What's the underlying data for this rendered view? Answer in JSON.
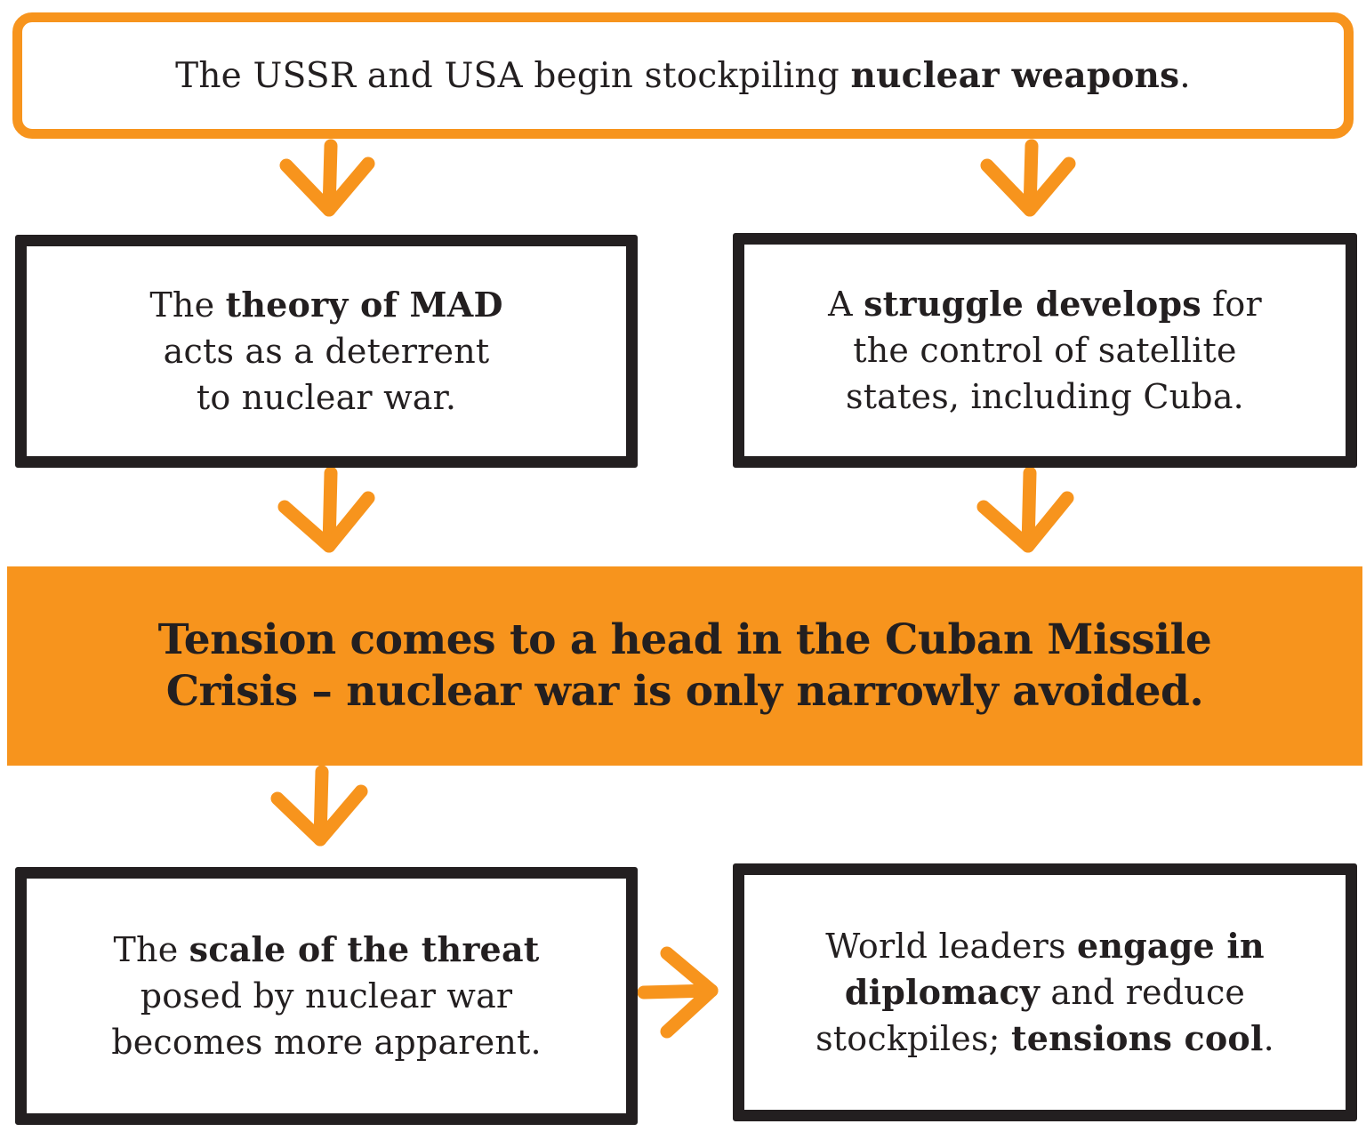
{
  "colors": {
    "accent": "#f7941d",
    "ink": "#231f20",
    "background": "#ffffff"
  },
  "nodes": {
    "stockpiling": {
      "a": "The USSR and USA begin stockpiling ",
      "b": "nuclear weapons",
      "c": "."
    },
    "mad": {
      "a": "The ",
      "b": "theory of MAD",
      "c": "acts as a deterrent",
      "d": "to nuclear war."
    },
    "struggle": {
      "a": "A ",
      "b": "struggle develops",
      "c": " for",
      "d": "the control of satellite",
      "e": "states, including Cuba."
    },
    "crisis": {
      "line1": "Tension comes to a head in the Cuban Missile",
      "line2": "Crisis – nuclear war is only narrowly avoided."
    },
    "scale": {
      "a": "The ",
      "b": "scale of the threat",
      "c": "posed by nuclear war",
      "d": "becomes more apparent."
    },
    "diplomacy": {
      "a": "World leaders ",
      "b": "engage in",
      "c": "diplomacy",
      "d": " and reduce",
      "e": "stockpiles; ",
      "f": "tensions cool",
      "g": "."
    }
  },
  "edges": [
    {
      "from": "stockpiling",
      "to": "mad"
    },
    {
      "from": "stockpiling",
      "to": "struggle"
    },
    {
      "from": "mad",
      "to": "crisis"
    },
    {
      "from": "struggle",
      "to": "crisis"
    },
    {
      "from": "crisis",
      "to": "scale"
    },
    {
      "from": "scale",
      "to": "diplomacy"
    }
  ]
}
